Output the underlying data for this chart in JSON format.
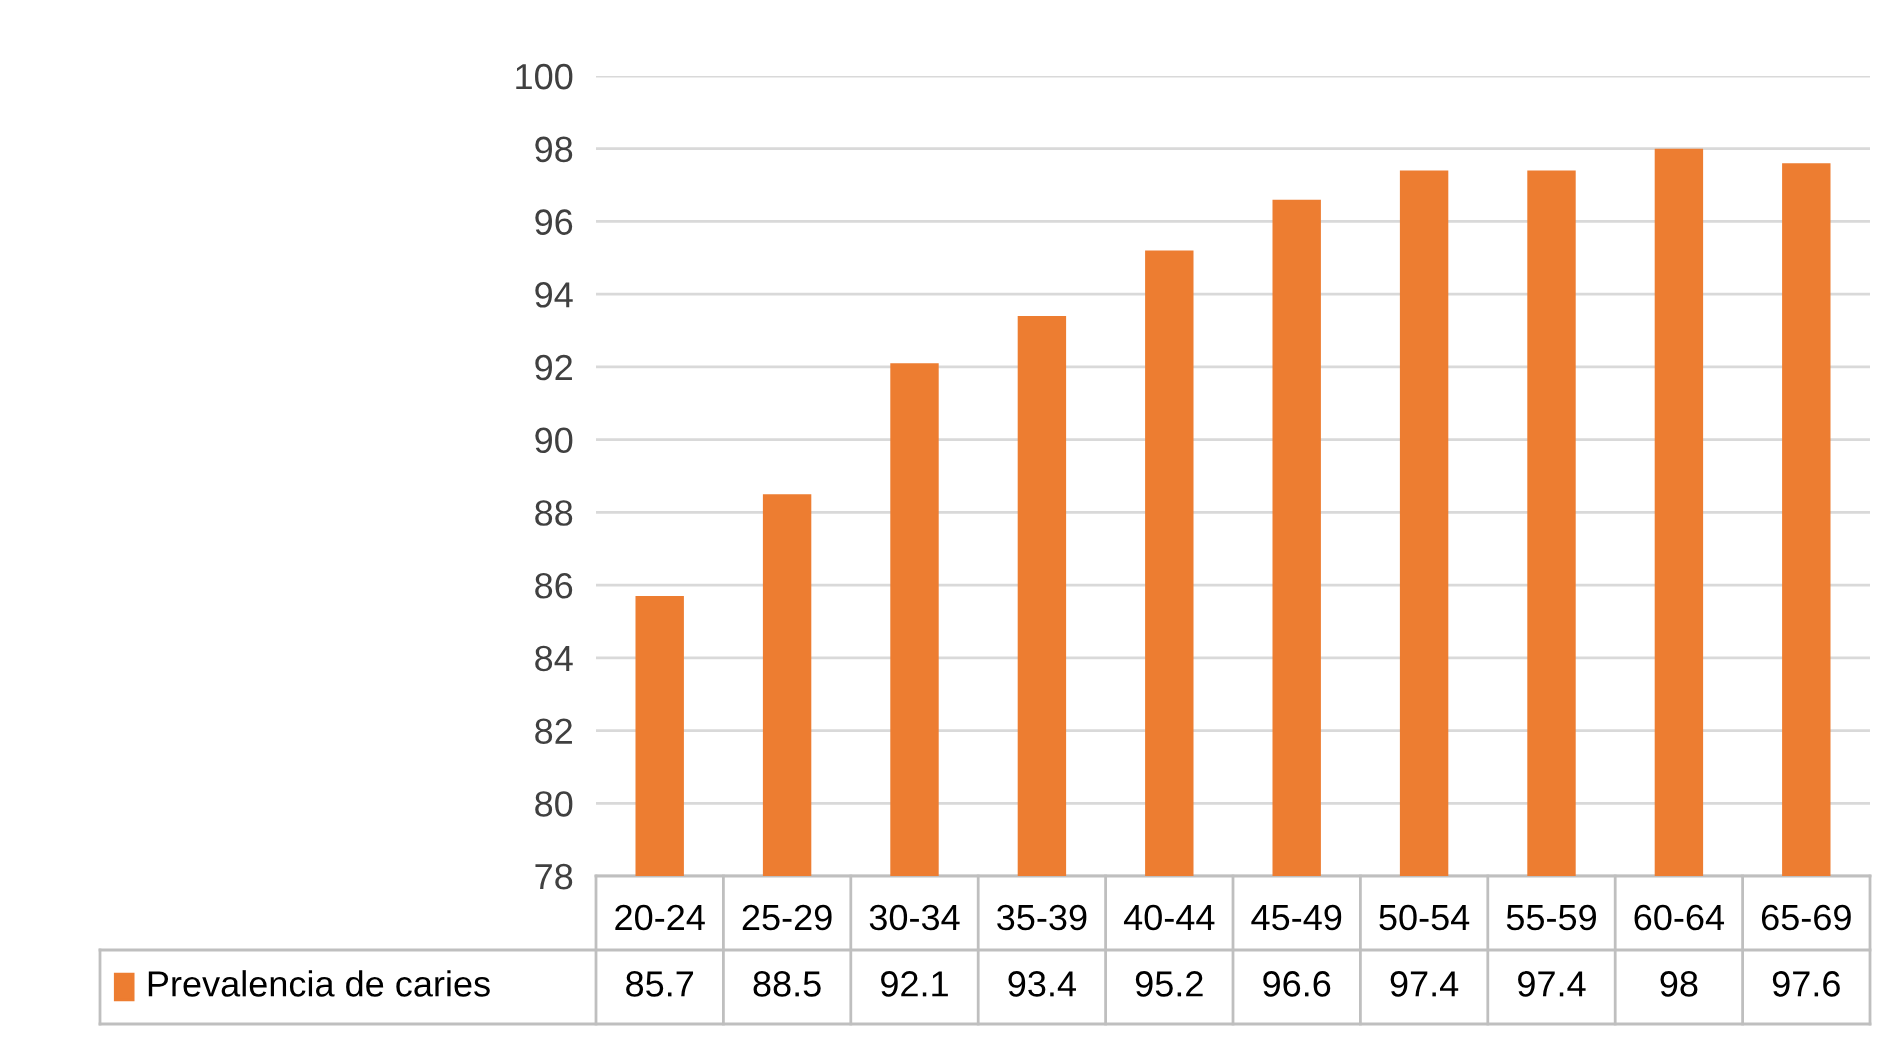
{
  "chart_data": {
    "type": "bar",
    "categories": [
      "20-24",
      "25-29",
      "30-34",
      "35-39",
      "40-44",
      "45-49",
      "50-54",
      "55-59",
      "60-64",
      "65-69"
    ],
    "series": [
      {
        "name": "Prevalencia de caries",
        "color": "#ed7d31",
        "values": [
          85.7,
          88.5,
          92.1,
          93.4,
          95.2,
          96.6,
          97.4,
          97.4,
          98,
          97.6
        ]
      }
    ],
    "ylim": [
      78,
      100
    ],
    "yticks": [
      78,
      80,
      82,
      84,
      86,
      88,
      90,
      92,
      94,
      96,
      98,
      100
    ],
    "grid": "y",
    "legend": "bottom",
    "data_labels": true
  }
}
